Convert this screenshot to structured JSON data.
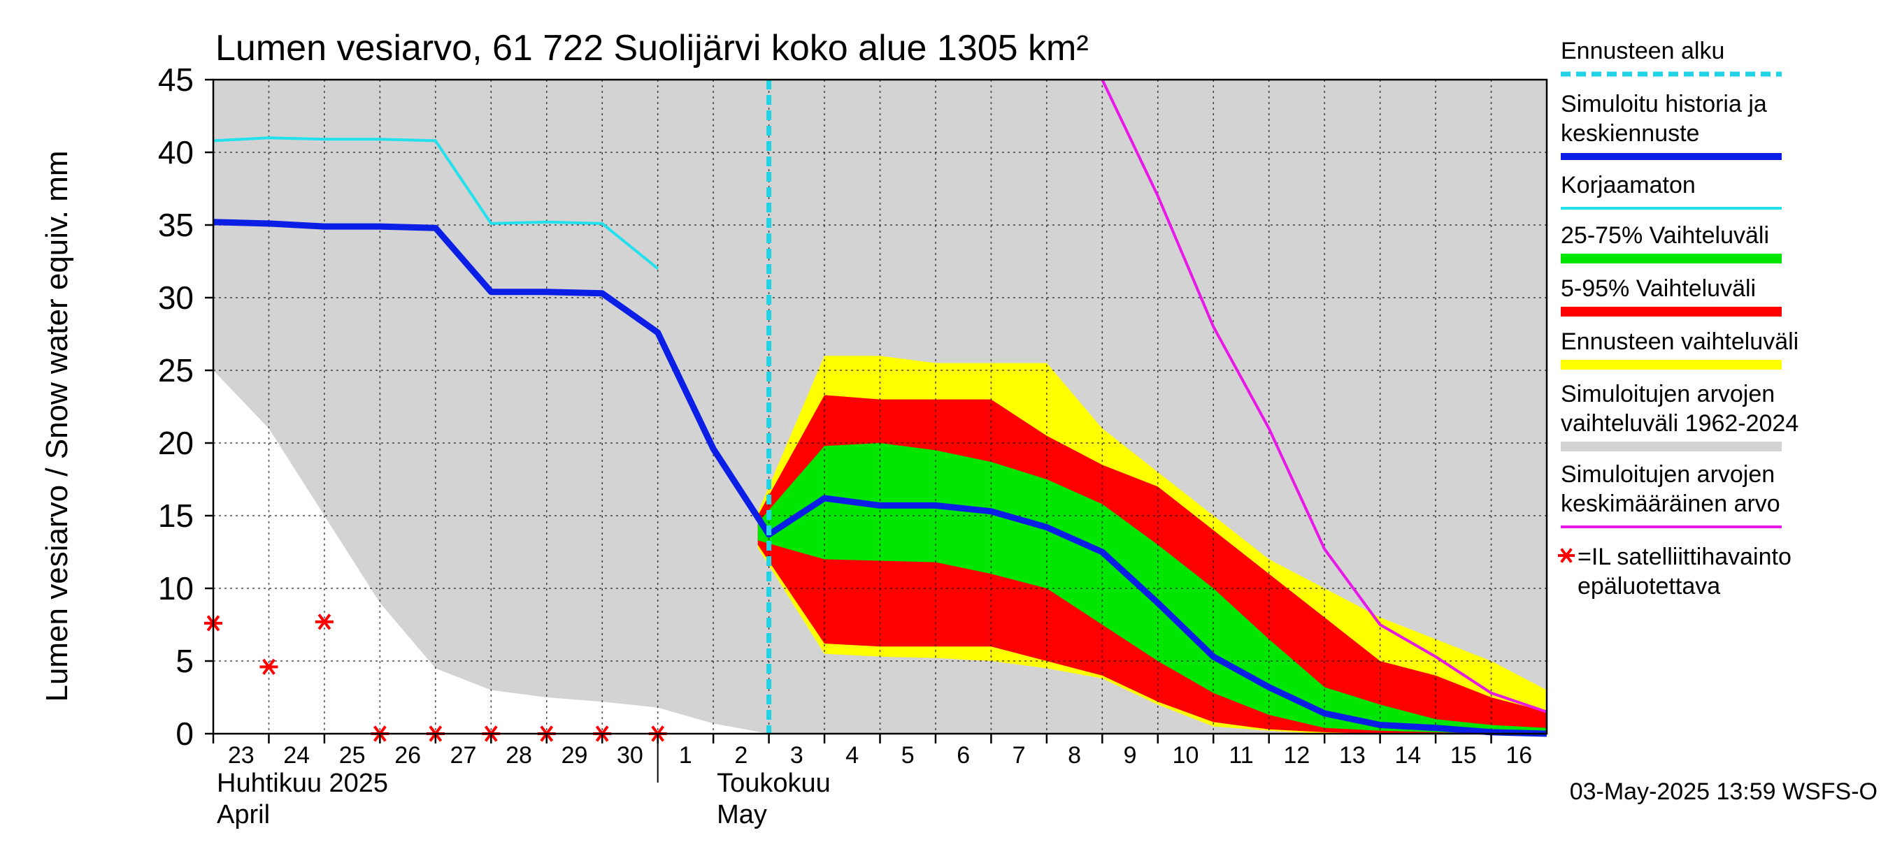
{
  "chart_data": {
    "type": "area",
    "title": "Lumen vesiarvo, 61 722 Suolijärvi koko alue 1305 km²",
    "ylabel": "Lumen vesiarvo / Snow water equiv.    mm",
    "ylim": [
      0,
      45
    ],
    "yticks": [
      0,
      5,
      10,
      15,
      20,
      25,
      30,
      35,
      40,
      45
    ],
    "xlim": [
      0,
      24
    ],
    "x_tick_labels": [
      "23",
      "24",
      "25",
      "26",
      "27",
      "28",
      "29",
      "30",
      "1",
      "2",
      "3",
      "4",
      "5",
      "6",
      "7",
      "8",
      "9",
      "10",
      "11",
      "12",
      "13",
      "14",
      "15",
      "16"
    ],
    "month_labels": [
      {
        "x": 0,
        "fi": "Huhtikuu  2025",
        "en": "April"
      },
      {
        "x": 9,
        "fi": "Toukokuu",
        "en": "May"
      }
    ],
    "month_divider_x": 8,
    "grid": true,
    "forecast_start_x": 10,
    "legend_position": "right",
    "legend": [
      {
        "key": "forecast_start",
        "label": "Ennusteen alku",
        "color": "#22d3e6"
      },
      {
        "key": "simulated",
        "label": "Simuloitu historia ja keskiennuste",
        "color": "#0a1ee6"
      },
      {
        "key": "uncorrected",
        "label": "Korjaamaton",
        "color": "#22e0ec"
      },
      {
        "key": "p25_75",
        "label": "25-75% Vaihteluväli",
        "color": "#00e600"
      },
      {
        "key": "p5_95",
        "label": "5-95% Vaihteluväli",
        "color": "#ff0000"
      },
      {
        "key": "forecast_range",
        "label": "Ennusteen vaihteluväli",
        "color": "#ffff00"
      },
      {
        "key": "hist_range",
        "label": "Simuloitujen arvojen vaihteluväli 1962-2024",
        "color": "#d3d3d3"
      },
      {
        "key": "hist_mean",
        "label": "Simuloitujen arvojen keskimääräinen arvo",
        "color": "#e619e6"
      },
      {
        "key": "satellite",
        "label": "=IL satelliittihavainto epäluotettava",
        "color": "#ff0000"
      }
    ],
    "series": {
      "hist_range_upper": [
        [
          0,
          45
        ],
        [
          24,
          45
        ]
      ],
      "hist_range_lower": [
        [
          0,
          25
        ],
        [
          1,
          21
        ],
        [
          2,
          15
        ],
        [
          3,
          9
        ],
        [
          4,
          4.5
        ],
        [
          5,
          3
        ],
        [
          6,
          2.5
        ],
        [
          7,
          2.2
        ],
        [
          8,
          1.8
        ],
        [
          9,
          0.7
        ],
        [
          10,
          0
        ],
        [
          24,
          0
        ]
      ],
      "forecast_range": {
        "upper": [
          [
            9.8,
            15.2
          ],
          [
            11,
            26
          ],
          [
            12,
            26
          ],
          [
            13,
            25.5
          ],
          [
            14,
            25.5
          ],
          [
            15,
            25.5
          ],
          [
            16,
            21
          ],
          [
            17,
            18
          ],
          [
            18,
            15
          ],
          [
            19,
            12
          ],
          [
            20,
            10
          ],
          [
            21,
            8
          ],
          [
            22,
            6.5
          ],
          [
            23,
            5
          ],
          [
            24,
            3
          ]
        ],
        "lower": [
          [
            9.8,
            12.8
          ],
          [
            11,
            5.5
          ],
          [
            12,
            5.3
          ],
          [
            13,
            5.2
          ],
          [
            14,
            5
          ],
          [
            15,
            4.5
          ],
          [
            16,
            3.8
          ],
          [
            17,
            2
          ],
          [
            18,
            0.5
          ],
          [
            19,
            0.2
          ],
          [
            20,
            0
          ],
          [
            21,
            0
          ],
          [
            22,
            0
          ],
          [
            23,
            0
          ],
          [
            24,
            0
          ]
        ]
      },
      "p5_95": {
        "upper": [
          [
            9.8,
            15
          ],
          [
            11,
            23.3
          ],
          [
            12,
            23
          ],
          [
            13,
            23
          ],
          [
            14,
            23
          ],
          [
            15,
            20.5
          ],
          [
            16,
            18.5
          ],
          [
            17,
            17
          ],
          [
            18,
            14
          ],
          [
            19,
            11
          ],
          [
            20,
            8
          ],
          [
            21,
            5
          ],
          [
            22,
            4
          ],
          [
            23,
            2.5
          ],
          [
            24,
            1.5
          ]
        ],
        "lower": [
          [
            9.8,
            13
          ],
          [
            11,
            6.2
          ],
          [
            12,
            6
          ],
          [
            13,
            6
          ],
          [
            14,
            6
          ],
          [
            15,
            5
          ],
          [
            16,
            4
          ],
          [
            17,
            2.2
          ],
          [
            18,
            0.8
          ],
          [
            19,
            0.3
          ],
          [
            20,
            0.1
          ],
          [
            21,
            0
          ],
          [
            22,
            0
          ],
          [
            23,
            0
          ],
          [
            24,
            0
          ]
        ]
      },
      "p25_75": {
        "upper": [
          [
            9.8,
            14.5
          ],
          [
            11,
            19.8
          ],
          [
            12,
            20
          ],
          [
            13,
            19.5
          ],
          [
            14,
            18.7
          ],
          [
            15,
            17.5
          ],
          [
            16,
            15.8
          ],
          [
            17,
            13
          ],
          [
            18,
            10
          ],
          [
            19,
            6.5
          ],
          [
            20,
            3.2
          ],
          [
            21,
            2
          ],
          [
            22,
            1
          ],
          [
            23,
            0.6
          ],
          [
            24,
            0.4
          ]
        ],
        "lower": [
          [
            9.8,
            13.3
          ],
          [
            11,
            12
          ],
          [
            12,
            11.9
          ],
          [
            13,
            11.8
          ],
          [
            14,
            11
          ],
          [
            15,
            10
          ],
          [
            16,
            7.5
          ],
          [
            17,
            5
          ],
          [
            18,
            2.8
          ],
          [
            19,
            1.3
          ],
          [
            20,
            0.4
          ],
          [
            21,
            0.2
          ],
          [
            22,
            0.1
          ],
          [
            23,
            0
          ],
          [
            24,
            0
          ]
        ]
      },
      "simulated": [
        [
          0,
          35.2
        ],
        [
          1,
          35.1
        ],
        [
          2,
          34.9
        ],
        [
          3,
          34.9
        ],
        [
          4,
          34.8
        ],
        [
          5,
          30.4
        ],
        [
          6,
          30.4
        ],
        [
          7,
          30.3
        ],
        [
          8,
          27.6
        ],
        [
          9,
          19.6
        ],
        [
          10,
          13.7
        ],
        [
          11,
          16.2
        ],
        [
          12,
          15.7
        ],
        [
          13,
          15.7
        ],
        [
          14,
          15.3
        ],
        [
          15,
          14.2
        ],
        [
          16,
          12.5
        ],
        [
          17,
          9
        ],
        [
          18,
          5.3
        ],
        [
          19,
          3.2
        ],
        [
          20,
          1.4
        ],
        [
          21,
          0.6
        ],
        [
          22,
          0.4
        ],
        [
          23,
          0.1
        ],
        [
          24,
          0
        ]
      ],
      "uncorrected": [
        [
          0,
          40.8
        ],
        [
          1,
          41
        ],
        [
          2,
          40.9
        ],
        [
          3,
          40.9
        ],
        [
          4,
          40.8
        ],
        [
          5,
          35.1
        ],
        [
          6,
          35.2
        ],
        [
          7,
          35.1
        ],
        [
          8,
          32
        ]
      ],
      "hist_mean": [
        [
          16,
          45
        ],
        [
          17,
          37
        ],
        [
          18,
          28
        ],
        [
          19,
          21
        ],
        [
          20,
          12.7
        ],
        [
          21,
          7.5
        ],
        [
          22,
          5.3
        ],
        [
          23,
          2.8
        ],
        [
          24,
          1.5
        ]
      ],
      "satellite": [
        [
          0,
          7.6
        ],
        [
          1,
          4.6
        ],
        [
          2,
          7.7
        ],
        [
          3,
          0
        ],
        [
          4,
          0
        ],
        [
          5,
          0
        ],
        [
          6,
          0
        ],
        [
          7,
          0
        ],
        [
          8,
          0
        ]
      ]
    },
    "footer": "03-May-2025 13:59 WSFS-O"
  }
}
